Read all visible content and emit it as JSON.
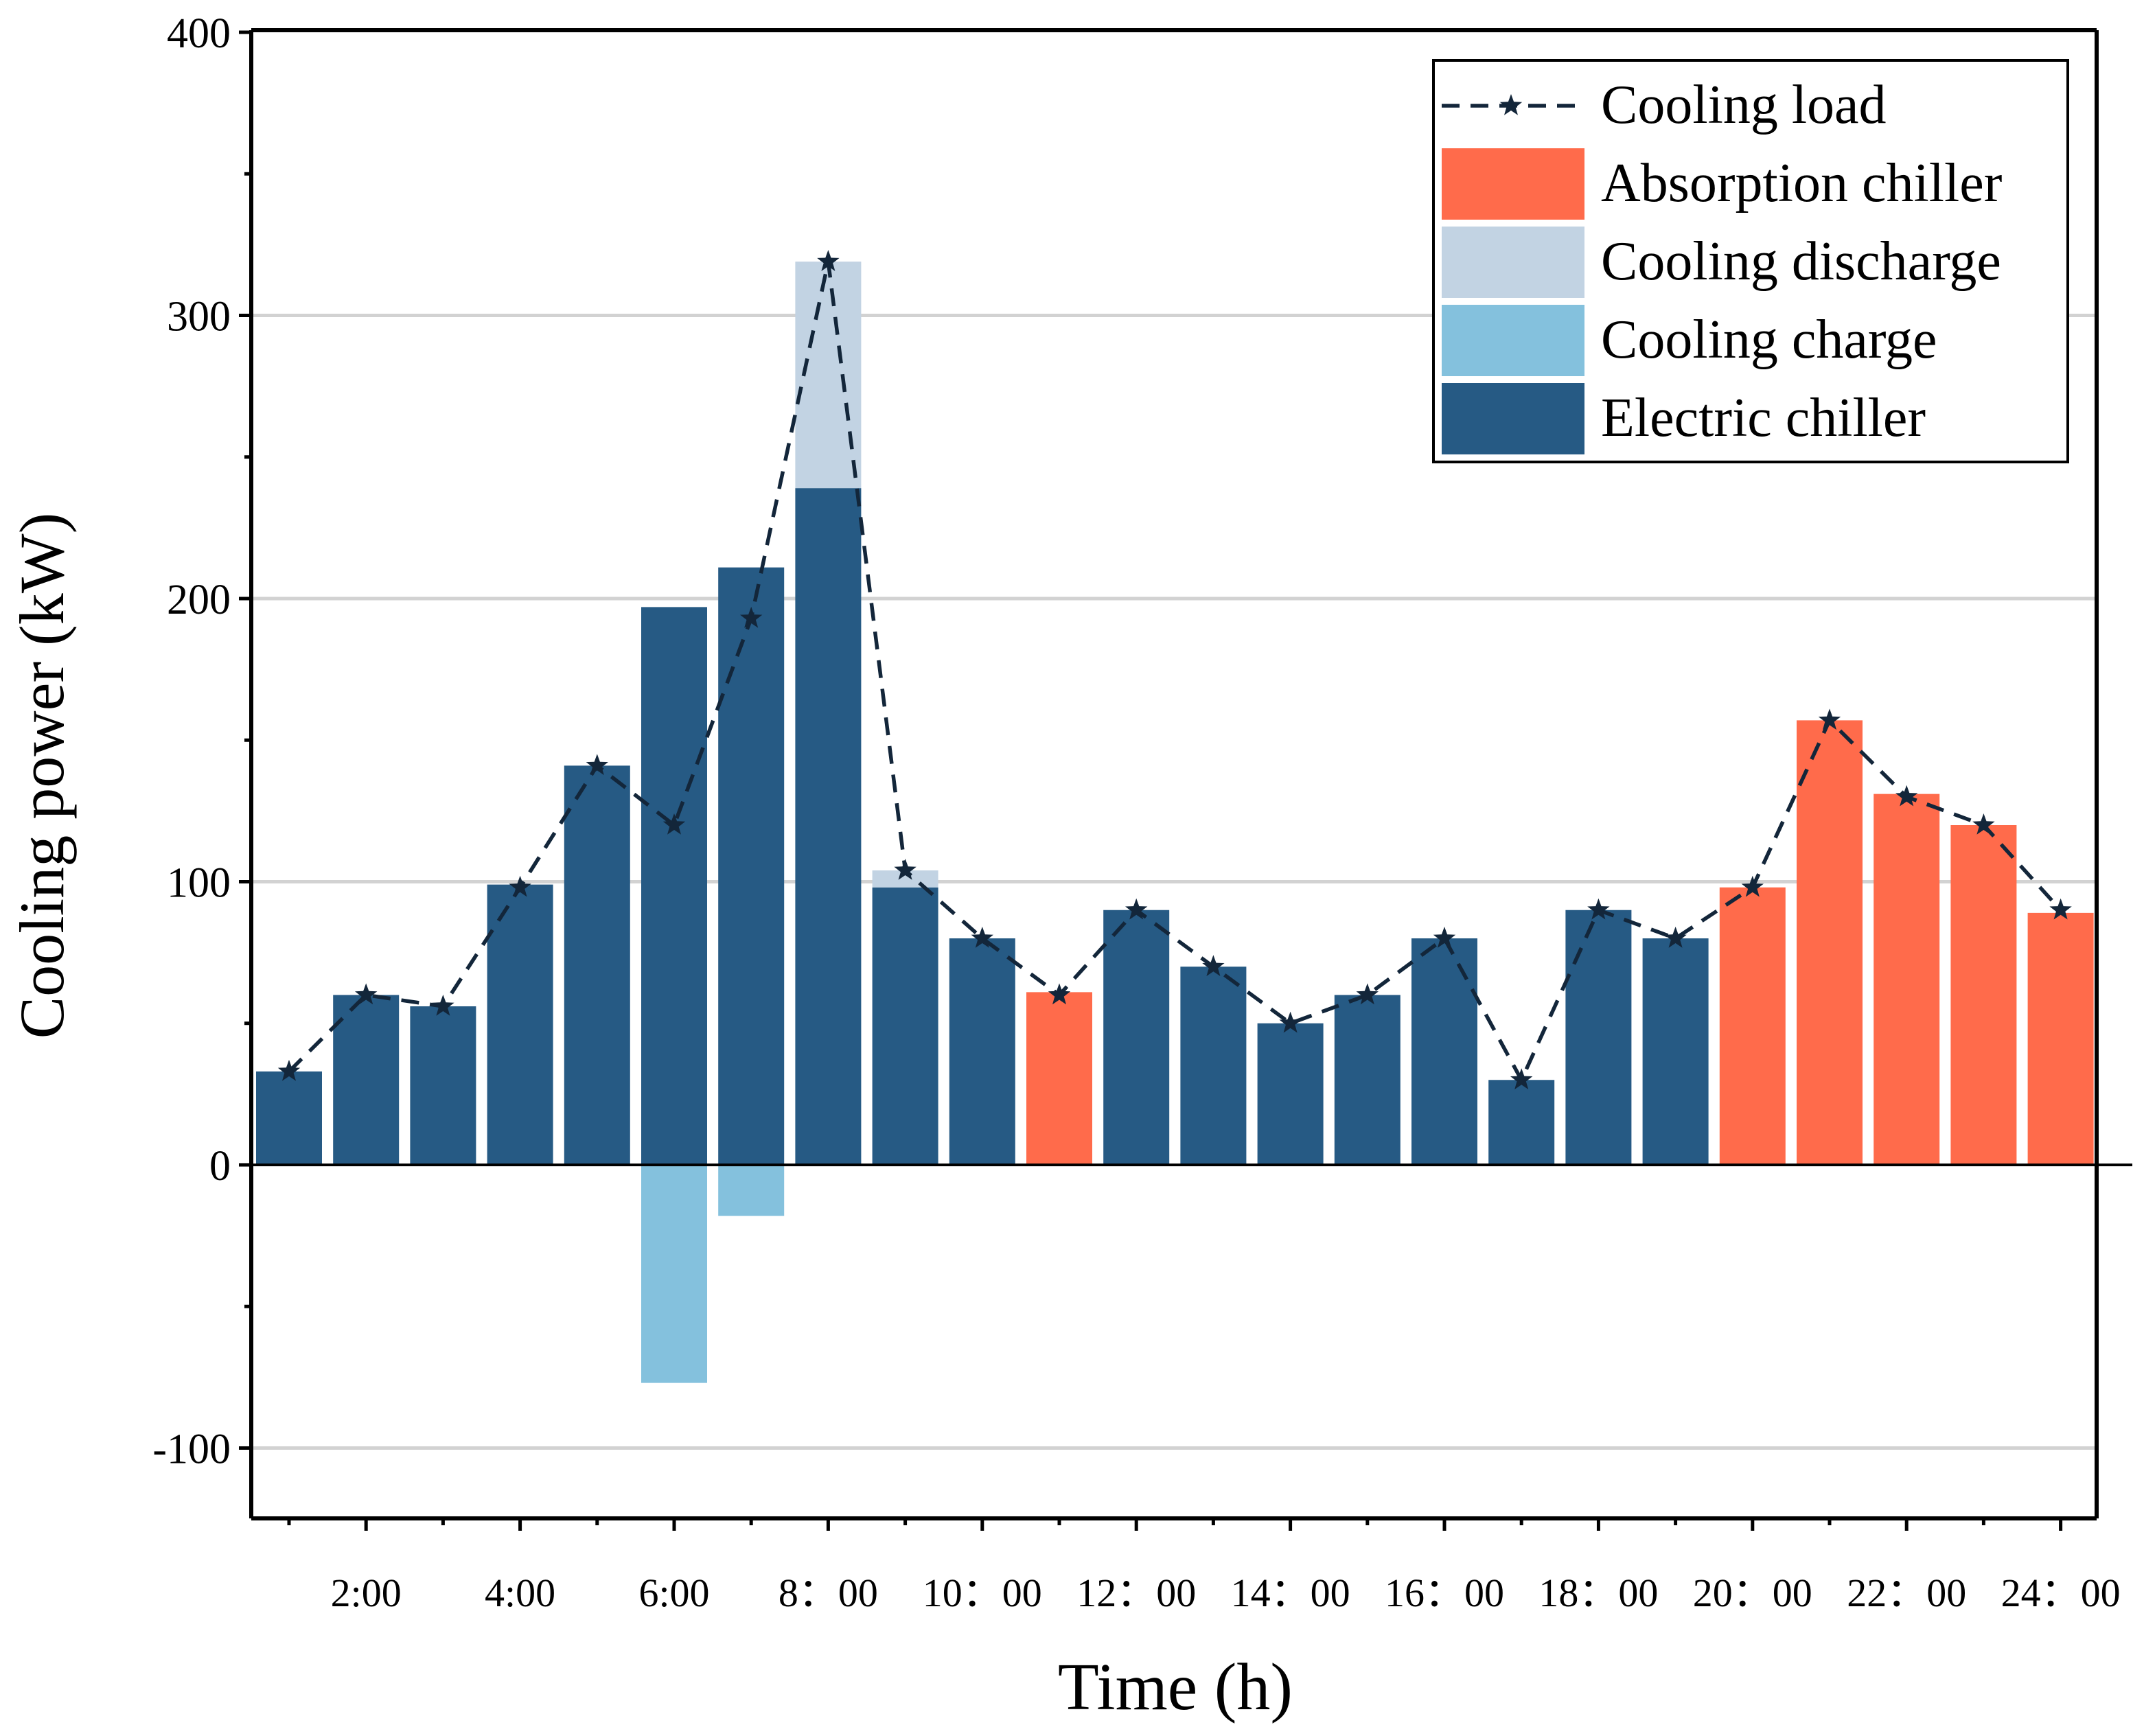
{
  "chart_data": {
    "type": "bar",
    "title": "",
    "xlabel": "Time (h)",
    "ylabel": "Cooling power (kW)",
    "ylim": [
      -125,
      400
    ],
    "yticks": [
      -100,
      0,
      100,
      200,
      300,
      400
    ],
    "ytick_labels": [
      "-100",
      "0",
      "100",
      "200",
      "300",
      "400"
    ],
    "grid": "horizontal",
    "legend_position": "top-right",
    "hours": [
      1,
      2,
      3,
      4,
      5,
      6,
      7,
      8,
      9,
      10,
      11,
      12,
      13,
      14,
      15,
      16,
      17,
      18,
      19,
      20,
      21,
      22,
      23,
      24
    ],
    "xtick_labels": [
      {
        "hour": 2,
        "label": "2:00"
      },
      {
        "hour": 4,
        "label": "4:00"
      },
      {
        "hour": 6,
        "label": "6:00"
      },
      {
        "hour": 8,
        "label": "8：00"
      },
      {
        "hour": 10,
        "label": "10：00"
      },
      {
        "hour": 12,
        "label": "12：00"
      },
      {
        "hour": 14,
        "label": "14：00"
      },
      {
        "hour": 16,
        "label": "16：00"
      },
      {
        "hour": 18,
        "label": "18：00"
      },
      {
        "hour": 20,
        "label": "20：00"
      },
      {
        "hour": 22,
        "label": "22：00"
      },
      {
        "hour": 24,
        "label": "24：00"
      }
    ],
    "series": [
      {
        "name": "Electric chiller",
        "color": "#265A84",
        "values": [
          33,
          60,
          56,
          99,
          141,
          197,
          211,
          239,
          98,
          80,
          0,
          90,
          70,
          50,
          60,
          80,
          30,
          90,
          80,
          0,
          0,
          0,
          0,
          0
        ]
      },
      {
        "name": "Absorption chiller",
        "color": "#FF6B4B",
        "values": [
          0,
          0,
          0,
          0,
          0,
          0,
          0,
          0,
          0,
          0,
          61,
          0,
          0,
          0,
          0,
          0,
          0,
          0,
          0,
          98,
          157,
          131,
          120,
          89
        ]
      },
      {
        "name": "Cooling discharge",
        "color": "#C2D3E3",
        "values": [
          0,
          0,
          0,
          0,
          0,
          0,
          0,
          80,
          6,
          0,
          0,
          0,
          0,
          0,
          0,
          0,
          0,
          0,
          0,
          0,
          0,
          0,
          0,
          0
        ]
      },
      {
        "name": "Cooling charge",
        "color": "#84C1DD",
        "values": [
          0,
          0,
          0,
          0,
          0,
          -77,
          -18,
          0,
          0,
          0,
          0,
          0,
          0,
          0,
          0,
          0,
          0,
          0,
          0,
          0,
          0,
          0,
          0,
          0
        ]
      },
      {
        "name": "Cooling load",
        "type": "line",
        "style": "dashed-star",
        "color": "#13263A",
        "values": [
          33,
          60,
          56,
          98,
          141,
          120,
          193,
          319,
          104,
          80,
          60,
          90,
          70,
          50,
          60,
          80,
          30,
          90,
          80,
          98,
          157,
          130,
          120,
          90
        ]
      }
    ],
    "legend": [
      {
        "name": "Cooling load",
        "kind": "line",
        "color": "#13263A"
      },
      {
        "name": "Absorption chiller",
        "kind": "box",
        "color": "#FF6B4B"
      },
      {
        "name": "Cooling discharge",
        "kind": "box",
        "color": "#C2D3E3"
      },
      {
        "name": "Cooling charge",
        "kind": "box",
        "color": "#84C1DD"
      },
      {
        "name": "Electric chiller",
        "kind": "box",
        "color": "#265A84"
      }
    ]
  }
}
